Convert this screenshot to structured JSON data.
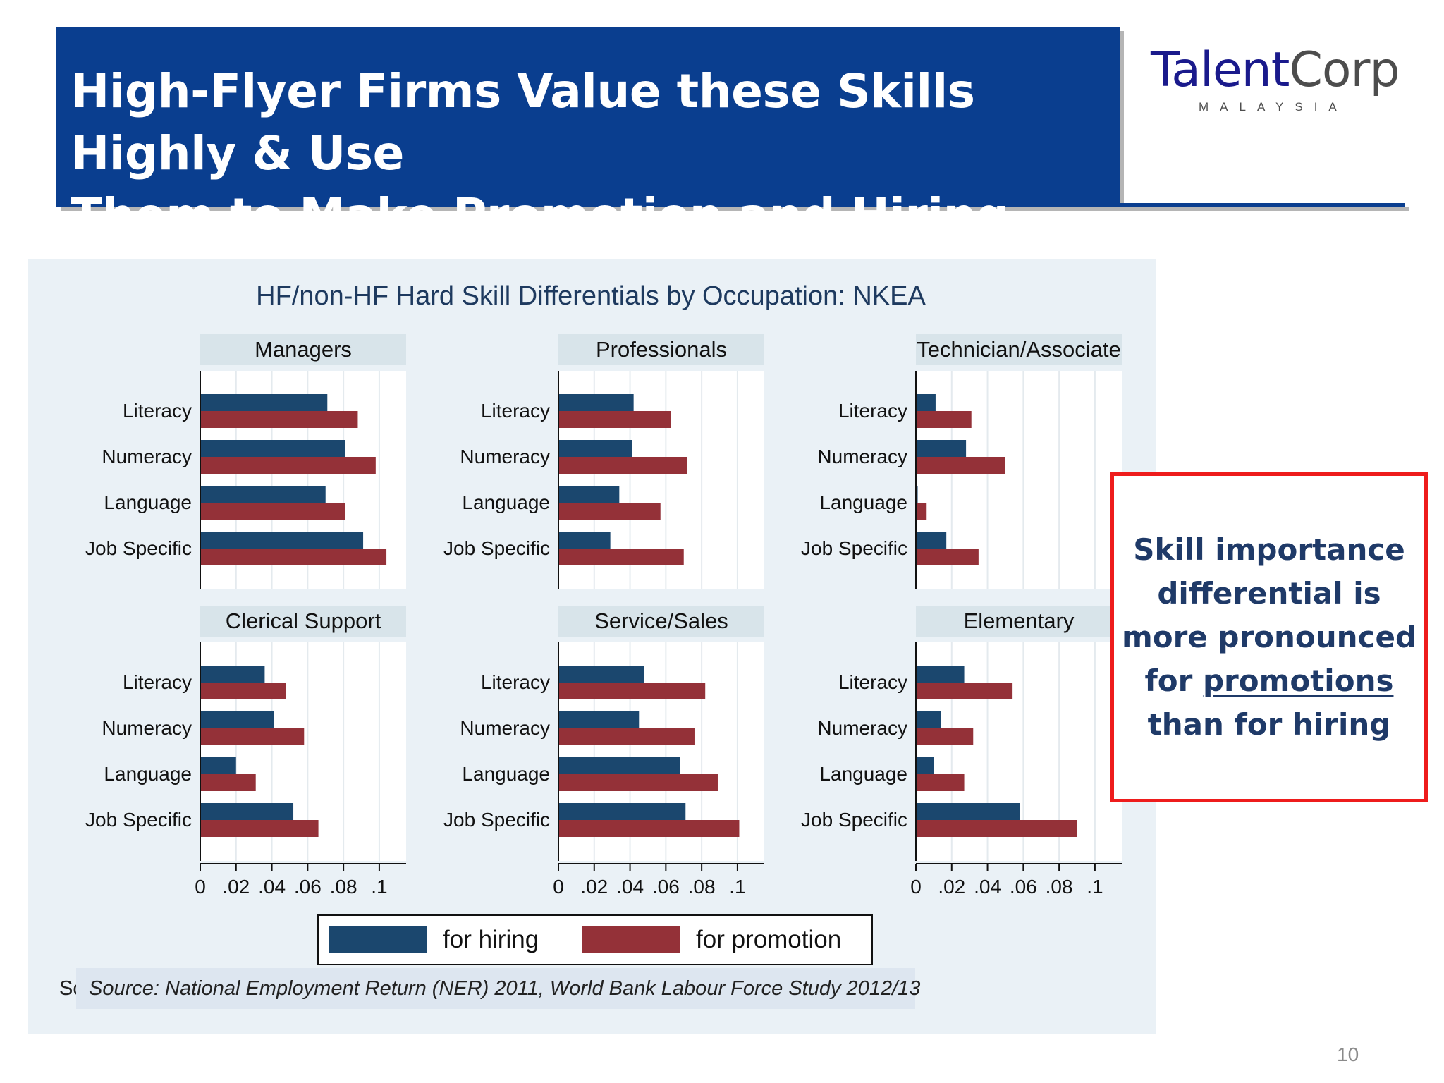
{
  "slide": {
    "title_line1": "High-Flyer Firms Value these Skills Highly & Use",
    "title_line2_prefix": "Them to Make ",
    "title_line2_underlined": "Promotion and Hiring Decisions",
    "logo_part1": "Talent",
    "logo_part2": "Corp",
    "logo_sub": "MALAYSIA",
    "callout_pre": "Skill importance differential is more pronounced for ",
    "callout_underlined": "promotions",
    "callout_post": " than for hiring",
    "source_stub": "Sc",
    "source": "Source: National Employment Return (NER) 2011, World Bank Labour Force Study 2012/13",
    "page_number": "10"
  },
  "colors": {
    "hiring": "#1b476e",
    "promotion": "#943138",
    "title_bg": "#0a3e8f",
    "callout_border": "#ee1c1c"
  },
  "chart_data": {
    "type": "bar",
    "orientation": "horizontal",
    "title": "HF/non-HF Hard Skill Differentials by Occupation: NKEA",
    "categories": [
      "Literacy",
      "Numeracy",
      "Language",
      "Job Specific"
    ],
    "xlim": [
      0,
      0.115
    ],
    "ticks": [
      0,
      0.02,
      0.04,
      0.06,
      0.08,
      0.1
    ],
    "tick_labels": [
      "0",
      ".02",
      ".04",
      ".06",
      ".08",
      ".1"
    ],
    "legend": [
      "for hiring",
      "for promotion"
    ],
    "legend_position": "bottom",
    "grid": true,
    "panels": [
      {
        "name": "Managers",
        "series": [
          {
            "name": "for hiring",
            "values": [
              0.071,
              0.081,
              0.07,
              0.091
            ]
          },
          {
            "name": "for promotion",
            "values": [
              0.088,
              0.098,
              0.081,
              0.104
            ]
          }
        ]
      },
      {
        "name": "Professionals",
        "series": [
          {
            "name": "for hiring",
            "values": [
              0.042,
              0.041,
              0.034,
              0.029
            ]
          },
          {
            "name": "for promotion",
            "values": [
              0.063,
              0.072,
              0.057,
              0.07
            ]
          }
        ]
      },
      {
        "name": "Technician/Associate",
        "series": [
          {
            "name": "for hiring",
            "values": [
              0.011,
              0.028,
              0.001,
              0.017
            ]
          },
          {
            "name": "for promotion",
            "values": [
              0.031,
              0.05,
              0.006,
              0.035
            ]
          }
        ]
      },
      {
        "name": "Clerical Support",
        "series": [
          {
            "name": "for hiring",
            "values": [
              0.036,
              0.041,
              0.02,
              0.052
            ]
          },
          {
            "name": "for promotion",
            "values": [
              0.048,
              0.058,
              0.031,
              0.066
            ]
          }
        ]
      },
      {
        "name": "Service/Sales",
        "series": [
          {
            "name": "for hiring",
            "values": [
              0.048,
              0.045,
              0.068,
              0.071
            ]
          },
          {
            "name": "for promotion",
            "values": [
              0.082,
              0.076,
              0.089,
              0.101
            ]
          }
        ]
      },
      {
        "name": "Elementary",
        "series": [
          {
            "name": "for hiring",
            "values": [
              0.027,
              0.014,
              0.01,
              0.058
            ]
          },
          {
            "name": "for promotion",
            "values": [
              0.054,
              0.032,
              0.027,
              0.09
            ]
          }
        ]
      }
    ]
  }
}
